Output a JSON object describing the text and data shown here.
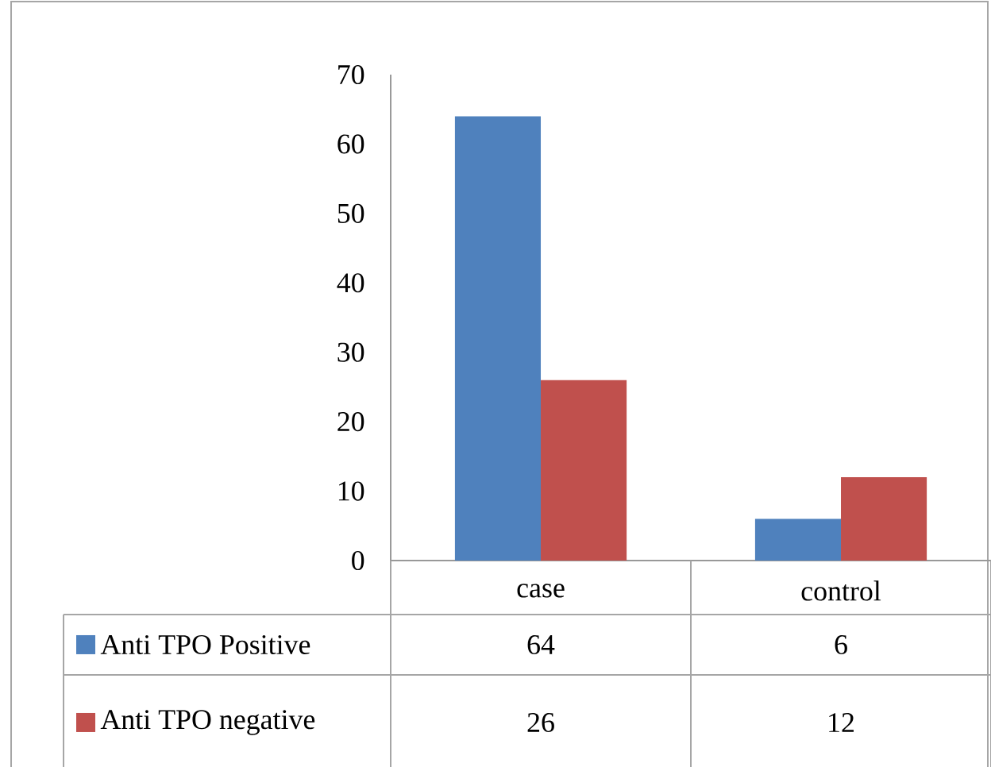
{
  "chart_data": {
    "type": "bar",
    "categories": [
      "case",
      "control"
    ],
    "series": [
      {
        "name": "Anti TPO Positive",
        "color": "#4f81bd",
        "values": [
          64,
          6
        ]
      },
      {
        "name": "Anti TPO negative",
        "color": "#c0504d",
        "values": [
          26,
          12
        ]
      }
    ],
    "ylim": [
      0,
      70
    ],
    "yticks": [
      0,
      10,
      20,
      30,
      40,
      50,
      60,
      70
    ],
    "data_labels": true,
    "legend": "left"
  }
}
